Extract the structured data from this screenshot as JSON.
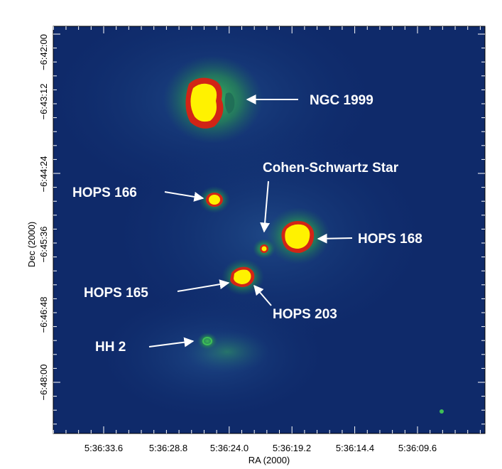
{
  "figure": {
    "xlabel": "RA (2000)",
    "ylabel": "Dec (2000)",
    "colors": {
      "background": "#0f2a6a",
      "glow": "#2fa848",
      "ring": "#d22416",
      "core": "#fff200",
      "label": "#ffffff"
    },
    "ra_ticks": [
      "5:36:33.6",
      "5:36:28.8",
      "5:36:24.0",
      "5:36:19.2",
      "5:36:14.4",
      "5:36:09.6"
    ],
    "dec_ticks": [
      "−6:42:00",
      "−6:43:12",
      "−6:44:24",
      "−6:45:36",
      "−6:46:48",
      "−6:48:00"
    ]
  },
  "annotations": {
    "ngc1999": "NGC 1999",
    "cohen_schwartz": "Cohen-Schwartz Star",
    "hops166": "HOPS 166",
    "hops168": "HOPS 168",
    "hops165": "HOPS 165",
    "hops203": "HOPS 203",
    "hh2": "HH 2"
  }
}
